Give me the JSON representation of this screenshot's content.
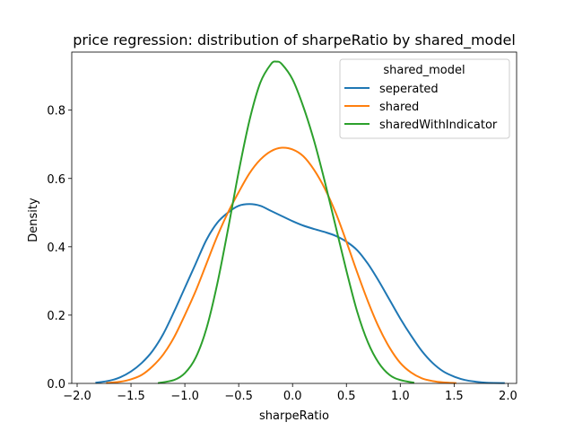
{
  "chart_data": {
    "type": "line",
    "title": "price regression: distribution of sharpeRatio by shared_model",
    "xlabel": "sharpeRatio",
    "ylabel": "Density",
    "xlim": [
      -2.05,
      2.08
    ],
    "ylim": [
      0,
      0.97
    ],
    "x_ticks": [
      -2.0,
      -1.5,
      -1.0,
      -0.5,
      0.0,
      0.5,
      1.0,
      1.5,
      2.0
    ],
    "x_tick_labels": [
      "−2.0",
      "−1.5",
      "−1.0",
      "−0.5",
      "0.0",
      "0.5",
      "1.0",
      "1.5",
      "2.0"
    ],
    "y_ticks": [
      0.0,
      0.2,
      0.4,
      0.6,
      0.8
    ],
    "y_tick_labels": [
      "0.0",
      "0.2",
      "0.4",
      "0.6",
      "0.8"
    ],
    "grid": false,
    "legend": {
      "title": "shared_model",
      "placement": "top-right"
    },
    "series": [
      {
        "name": "seperated",
        "color": "#1f77b4",
        "points": [
          [
            -1.83,
            0.002
          ],
          [
            -1.7,
            0.008
          ],
          [
            -1.6,
            0.018
          ],
          [
            -1.5,
            0.035
          ],
          [
            -1.4,
            0.06
          ],
          [
            -1.3,
            0.095
          ],
          [
            -1.2,
            0.145
          ],
          [
            -1.1,
            0.21
          ],
          [
            -1.0,
            0.28
          ],
          [
            -0.9,
            0.35
          ],
          [
            -0.8,
            0.42
          ],
          [
            -0.7,
            0.47
          ],
          [
            -0.6,
            0.5
          ],
          [
            -0.5,
            0.52
          ],
          [
            -0.4,
            0.525
          ],
          [
            -0.3,
            0.52
          ],
          [
            -0.2,
            0.505
          ],
          [
            -0.1,
            0.49
          ],
          [
            0.0,
            0.475
          ],
          [
            0.1,
            0.462
          ],
          [
            0.2,
            0.452
          ],
          [
            0.3,
            0.443
          ],
          [
            0.4,
            0.432
          ],
          [
            0.5,
            0.415
          ],
          [
            0.6,
            0.39
          ],
          [
            0.7,
            0.35
          ],
          [
            0.8,
            0.3
          ],
          [
            0.9,
            0.245
          ],
          [
            1.0,
            0.19
          ],
          [
            1.1,
            0.14
          ],
          [
            1.2,
            0.095
          ],
          [
            1.3,
            0.06
          ],
          [
            1.4,
            0.035
          ],
          [
            1.5,
            0.02
          ],
          [
            1.6,
            0.01
          ],
          [
            1.7,
            0.005
          ],
          [
            1.8,
            0.002
          ],
          [
            1.97,
            0.001
          ]
        ]
      },
      {
        "name": "shared",
        "color": "#ff7f0e",
        "points": [
          [
            -1.73,
            0.001
          ],
          [
            -1.6,
            0.005
          ],
          [
            -1.5,
            0.012
          ],
          [
            -1.4,
            0.025
          ],
          [
            -1.3,
            0.05
          ],
          [
            -1.2,
            0.085
          ],
          [
            -1.1,
            0.135
          ],
          [
            -1.0,
            0.2
          ],
          [
            -0.9,
            0.27
          ],
          [
            -0.8,
            0.35
          ],
          [
            -0.7,
            0.43
          ],
          [
            -0.6,
            0.5
          ],
          [
            -0.5,
            0.56
          ],
          [
            -0.4,
            0.615
          ],
          [
            -0.3,
            0.655
          ],
          [
            -0.2,
            0.68
          ],
          [
            -0.1,
            0.69
          ],
          [
            0.0,
            0.685
          ],
          [
            0.1,
            0.665
          ],
          [
            0.2,
            0.625
          ],
          [
            0.3,
            0.57
          ],
          [
            0.4,
            0.5
          ],
          [
            0.5,
            0.415
          ],
          [
            0.6,
            0.325
          ],
          [
            0.7,
            0.24
          ],
          [
            0.8,
            0.165
          ],
          [
            0.9,
            0.105
          ],
          [
            1.0,
            0.06
          ],
          [
            1.1,
            0.032
          ],
          [
            1.2,
            0.015
          ],
          [
            1.3,
            0.007
          ],
          [
            1.4,
            0.003
          ],
          [
            1.52,
            0.001
          ]
        ]
      },
      {
        "name": "sharedWithIndicator",
        "color": "#2ca02c",
        "points": [
          [
            -1.25,
            0.001
          ],
          [
            -1.1,
            0.01
          ],
          [
            -1.0,
            0.03
          ],
          [
            -0.9,
            0.075
          ],
          [
            -0.8,
            0.16
          ],
          [
            -0.7,
            0.29
          ],
          [
            -0.6,
            0.45
          ],
          [
            -0.5,
            0.62
          ],
          [
            -0.4,
            0.77
          ],
          [
            -0.3,
            0.88
          ],
          [
            -0.2,
            0.935
          ],
          [
            -0.15,
            0.942
          ],
          [
            -0.1,
            0.935
          ],
          [
            0.0,
            0.89
          ],
          [
            0.1,
            0.81
          ],
          [
            0.2,
            0.71
          ],
          [
            0.3,
            0.59
          ],
          [
            0.4,
            0.46
          ],
          [
            0.5,
            0.33
          ],
          [
            0.6,
            0.21
          ],
          [
            0.7,
            0.12
          ],
          [
            0.8,
            0.06
          ],
          [
            0.9,
            0.025
          ],
          [
            1.0,
            0.01
          ],
          [
            1.13,
            0.002
          ]
        ]
      }
    ]
  }
}
